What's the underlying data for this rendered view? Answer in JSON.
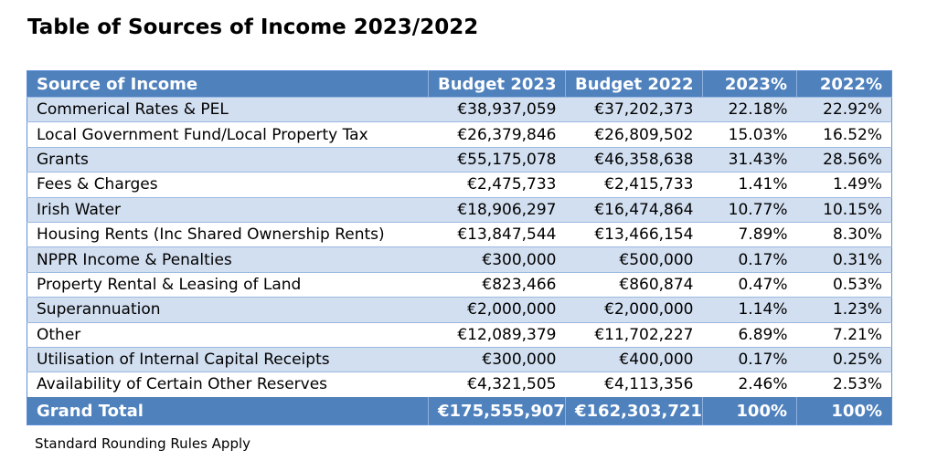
{
  "title": "Table of Sources of Income 2023/2022",
  "table": {
    "headers": [
      "Source of Income",
      "Budget 2023",
      "Budget 2022",
      "2023%",
      "2022%"
    ],
    "rows": [
      [
        "Commerical Rates & PEL",
        "€38,937,059",
        "€37,202,373",
        "22.18%",
        "22.92%"
      ],
      [
        "Local Government Fund/Local Property Tax",
        "€26,379,846",
        "€26,809,502",
        "15.03%",
        "16.52%"
      ],
      [
        "Grants",
        "€55,175,078",
        "€46,358,638",
        "31.43%",
        "28.56%"
      ],
      [
        "Fees & Charges",
        "€2,475,733",
        "€2,415,733",
        "1.41%",
        "1.49%"
      ],
      [
        "Irish Water",
        "€18,906,297",
        "€16,474,864",
        "10.77%",
        "10.15%"
      ],
      [
        "Housing Rents (Inc Shared Ownership Rents)",
        "€13,847,544",
        "€13,466,154",
        "7.89%",
        "8.30%"
      ],
      [
        "NPPR Income & Penalties",
        "€300,000",
        "€500,000",
        "0.17%",
        "0.31%"
      ],
      [
        "Property Rental & Leasing of Land",
        "€823,466",
        "€860,874",
        "0.47%",
        "0.53%"
      ],
      [
        "Superannuation",
        "€2,000,000",
        "€2,000,000",
        "1.14%",
        "1.23%"
      ],
      [
        "Other",
        "€12,089,379",
        "€11,702,227",
        "6.89%",
        "7.21%"
      ],
      [
        "Utilisation of Internal Capital Receipts",
        "€300,000",
        "€400,000",
        "0.17%",
        "0.25%"
      ],
      [
        "Availability of Certain Other Reserves",
        "€4,321,505",
        "€4,113,356",
        "2.46%",
        "2.53%"
      ]
    ],
    "total": [
      "Grand Total",
      "€175,555,907",
      "€162,303,721",
      "100%",
      "100%"
    ]
  },
  "note": "Standard Rounding Rules Apply",
  "colors": {
    "header_bg": "#4f81bd",
    "band_bg": "#d2dff0",
    "header_text": "#ffffff"
  }
}
